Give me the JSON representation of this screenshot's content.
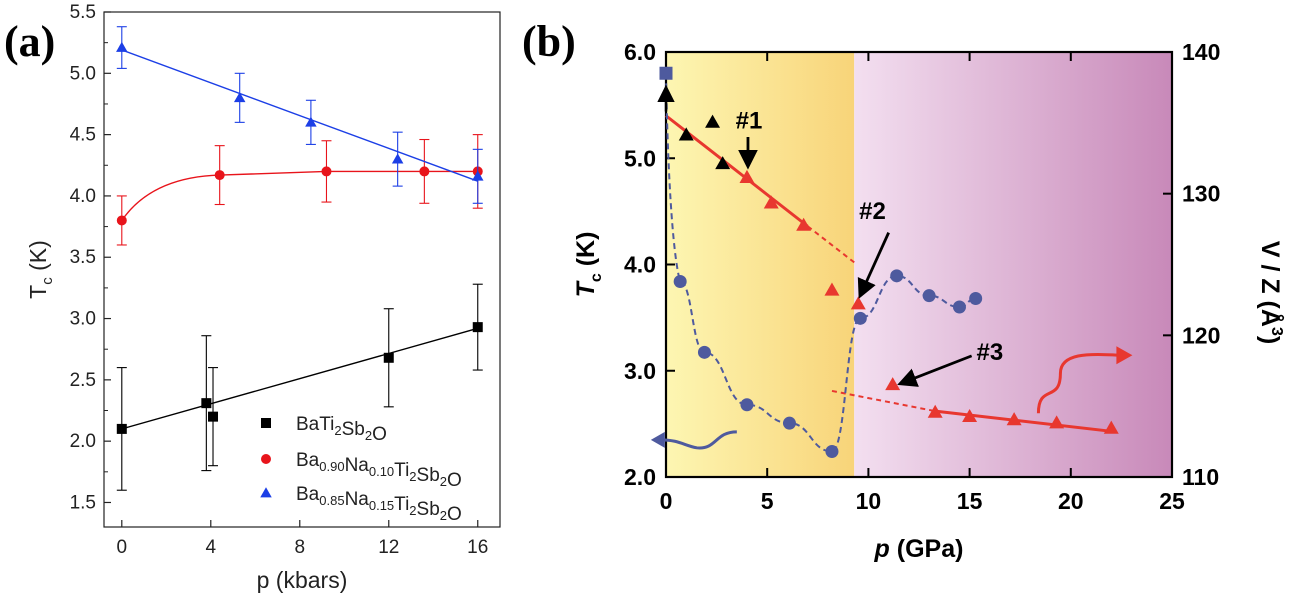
{
  "figure": {
    "label_a": "(a)",
    "label_b": "(b)"
  },
  "chart_data": [
    {
      "type": "line",
      "panel": "(a)",
      "xlabel": "p (kbars)",
      "ylabel_main": "T",
      "ylabel_sub": "c",
      "ylabel_unit": " (K)",
      "xlim": [
        -0.8,
        17
      ],
      "ylim": [
        1.3,
        5.5
      ],
      "xticks": [
        0,
        4,
        8,
        12,
        16
      ],
      "xtick_labels": [
        "0",
        "4",
        "8",
        "12",
        "16"
      ],
      "yticks": [
        1.5,
        2.0,
        2.5,
        3.0,
        3.5,
        4.0,
        4.5,
        5.0,
        5.5
      ],
      "ytick_labels": [
        "1.5",
        "2.0",
        "2.5",
        "3.0",
        "3.5",
        "4.0",
        "4.5",
        "5.0",
        "5.5"
      ],
      "series": [
        {
          "name": "BaTi2Sb2O",
          "legend_parts": [
            [
              "BaTi",
              false
            ],
            [
              "2",
              true
            ],
            [
              "Sb",
              false
            ],
            [
              "2",
              true
            ],
            [
              "O",
              false
            ]
          ],
          "color": "#000000",
          "marker": "square",
          "x": [
            0,
            3.8,
            4.1,
            12.0,
            16.0
          ],
          "y": [
            2.1,
            2.31,
            2.2,
            2.68,
            2.93
          ],
          "err": [
            0.5,
            0.55,
            0.4,
            0.4,
            0.35
          ],
          "fit": [
            [
              0,
              2.1
            ],
            [
              16,
              2.92
            ]
          ]
        },
        {
          "name": "Ba0.90Na0.10Ti2Sb2O",
          "legend_parts": [
            [
              "Ba",
              false
            ],
            [
              "0.90",
              true
            ],
            [
              "Na",
              false
            ],
            [
              "0.10",
              true
            ],
            [
              "Ti",
              false
            ],
            [
              "2",
              true
            ],
            [
              "Sb",
              false
            ],
            [
              "2",
              true
            ],
            [
              "O",
              false
            ]
          ],
          "color": "#e8141b",
          "marker": "circle",
          "x": [
            0,
            4.4,
            9.2,
            13.6,
            16.0
          ],
          "y": [
            3.8,
            4.17,
            4.2,
            4.2,
            4.2
          ],
          "err": [
            0.2,
            0.24,
            0.25,
            0.26,
            0.3
          ],
          "curve": true
        },
        {
          "name": "Ba0.85Na0.15Ti2Sb2O",
          "legend_parts": [
            [
              "Ba",
              false
            ],
            [
              "0.85",
              true
            ],
            [
              "Na",
              false
            ],
            [
              "0.15",
              true
            ],
            [
              "Ti",
              false
            ],
            [
              "2",
              true
            ],
            [
              "Sb",
              false
            ],
            [
              "2",
              true
            ],
            [
              "O",
              false
            ]
          ],
          "color": "#1c3fe6",
          "marker": "triangle",
          "x": [
            0,
            5.3,
            8.5,
            12.4,
            16.0
          ],
          "y": [
            5.21,
            4.8,
            4.6,
            4.3,
            4.16
          ],
          "err": [
            0.17,
            0.2,
            0.18,
            0.22,
            0.22
          ],
          "fit": [
            [
              0,
              5.19
            ],
            [
              16,
              4.12
            ]
          ]
        }
      ]
    },
    {
      "type": "scatter",
      "panel": "(b)",
      "xlabel": "p (GPa)",
      "ylabel_left_main": "T",
      "ylabel_left_sub": "c",
      "ylabel_left_unit": " (K)",
      "ylabel_right": "V / Z (Å",
      "ylabel_right_sup": "3",
      "ylabel_right_close": ")",
      "xlim": [
        0,
        25
      ],
      "ylim_left": [
        2.0,
        6.0
      ],
      "ylim_right": [
        110,
        140
      ],
      "xticks": [
        0,
        5,
        10,
        15,
        20,
        25
      ],
      "xtick_labels": [
        "0",
        "5",
        "10",
        "15",
        "20",
        "25"
      ],
      "yticks_left": [
        2.0,
        3.0,
        4.0,
        5.0,
        6.0
      ],
      "ytick_left_labels": [
        "2.0",
        "3.0",
        "4.0",
        "5.0",
        "6.0"
      ],
      "yticks_right": [
        110,
        120,
        130,
        140
      ],
      "ytick_right_labels": [
        "110",
        "120",
        "130",
        "140"
      ],
      "phase_boundary_x": 9.3,
      "colors": {
        "low_phase_start": "#fdf6b2",
        "low_phase_end": "#f8d479",
        "high_phase_start": "#f3dff0",
        "high_phase_end": "#c889b9",
        "tc": "#e8372f",
        "volume": "#4e5a9e",
        "pointer": "#000000"
      },
      "series": [
        {
          "name": "Tc (red)",
          "axis": "left",
          "marker": "triangle",
          "color": "#e8372f",
          "x": [
            4.0,
            5.2,
            6.8,
            8.2,
            9.5,
            11.2,
            13.3,
            15.0,
            17.2,
            19.3,
            22.0
          ],
          "y": [
            4.82,
            4.58,
            4.37,
            3.76,
            3.63,
            2.87,
            2.61,
            2.57,
            2.54,
            2.51,
            2.46
          ]
        },
        {
          "name": "Tc (black)",
          "axis": "left",
          "marker": "triangle",
          "color": "#000000",
          "x": [
            1.0,
            2.3,
            2.8
          ],
          "y": [
            5.22,
            5.34,
            4.95
          ]
        },
        {
          "name": "Tc (ambient)",
          "axis": "left",
          "marker": "square",
          "color": "#4e5a9e",
          "x": [
            0
          ],
          "y": [
            5.8
          ]
        },
        {
          "name": "V/Z",
          "axis": "right",
          "marker": "circle",
          "color": "#4e5a9e",
          "x": [
            0.7,
            1.9,
            4.0,
            6.1,
            8.2,
            9.6,
            11.4,
            13.0,
            14.5,
            15.3
          ],
          "y": [
            123.8,
            118.8,
            115.1,
            113.8,
            111.8,
            121.2,
            124.2,
            122.8,
            122.0,
            122.6
          ]
        }
      ],
      "fits": [
        {
          "kind": "solid",
          "from": [
            0,
            5.4
          ],
          "to": [
            7.0,
            4.36
          ]
        },
        {
          "kind": "dashed",
          "from": [
            7.0,
            4.36
          ],
          "to": [
            9.3,
            4.02
          ]
        },
        {
          "kind": "dashed",
          "from": [
            8.2,
            2.81
          ],
          "to": [
            13.3,
            2.62
          ]
        },
        {
          "kind": "solid",
          "from": [
            13.3,
            2.62
          ],
          "to": [
            22.0,
            2.43
          ]
        }
      ],
      "annotations": [
        {
          "text": "#1",
          "at": [
            4.1,
            5.28
          ],
          "arrow_from": [
            4.05,
            5.2
          ],
          "arrow_to": [
            4.05,
            4.93
          ]
        },
        {
          "text": "#2",
          "at": [
            10.2,
            4.43
          ],
          "arrow_from": [
            11.0,
            4.3
          ],
          "arrow_to": [
            9.6,
            3.71
          ]
        },
        {
          "text": "#3",
          "at": [
            16.0,
            3.1
          ],
          "arrow_from": [
            15.1,
            3.14
          ],
          "arrow_to": [
            11.6,
            2.88
          ]
        }
      ]
    }
  ]
}
